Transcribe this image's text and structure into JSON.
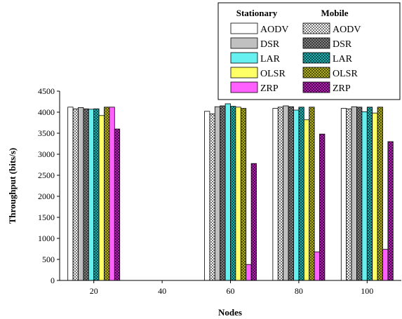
{
  "chart_data": {
    "type": "bar",
    "xlabel": "Nodes",
    "ylabel": "Throughput (bits/s)",
    "x_ticks": [
      "20",
      "40",
      "60",
      "80",
      "100"
    ],
    "groups": [
      20,
      60,
      80,
      100
    ],
    "ylim": [
      0,
      4500
    ],
    "y_ticks": [
      "0",
      "500",
      "1000",
      "1500",
      "2000",
      "2500",
      "3000",
      "3500",
      "4000",
      "4500"
    ],
    "legend": {
      "placement": "top-right",
      "column_headers": [
        "Stationary",
        "Mobile"
      ],
      "protocols": [
        "AODV",
        "DSR",
        "LAR",
        "OLSR",
        "ZRP"
      ]
    },
    "series": [
      {
        "name": "AODV",
        "mode": "Stationary",
        "color": "#ffffff",
        "pattern": "solid",
        "values": [
          4120,
          4020,
          4090,
          4090
        ]
      },
      {
        "name": "AODV",
        "mode": "Mobile",
        "color": "#ffffff",
        "pattern": "check",
        "values": [
          4080,
          3960,
          4120,
          4080
        ]
      },
      {
        "name": "DSR",
        "mode": "Stationary",
        "color": "#c0c0c0",
        "pattern": "solid",
        "values": [
          4110,
          4130,
          4150,
          4130
        ]
      },
      {
        "name": "DSR",
        "mode": "Mobile",
        "color": "#808080",
        "pattern": "check",
        "values": [
          4080,
          4150,
          4130,
          4120
        ]
      },
      {
        "name": "LAR",
        "mode": "Stationary",
        "color": "#66f0f0",
        "pattern": "solid",
        "values": [
          4070,
          4200,
          4050,
          4010
        ]
      },
      {
        "name": "LAR",
        "mode": "Mobile",
        "color": "#22b0b0",
        "pattern": "check",
        "values": [
          4080,
          4140,
          4120,
          4120
        ]
      },
      {
        "name": "OLSR",
        "mode": "Stationary",
        "color": "#ffff66",
        "pattern": "solid",
        "values": [
          3920,
          4120,
          3820,
          3980
        ]
      },
      {
        "name": "OLSR",
        "mode": "Mobile",
        "color": "#b0b020",
        "pattern": "check",
        "values": [
          4120,
          4090,
          4120,
          4120
        ]
      },
      {
        "name": "ZRP",
        "mode": "Stationary",
        "color": "#ff60ff",
        "pattern": "solid",
        "values": [
          4120,
          380,
          680,
          740
        ]
      },
      {
        "name": "ZRP",
        "mode": "Mobile",
        "color": "#b020b0",
        "pattern": "check",
        "values": [
          3600,
          2780,
          3480,
          3300
        ]
      }
    ]
  }
}
